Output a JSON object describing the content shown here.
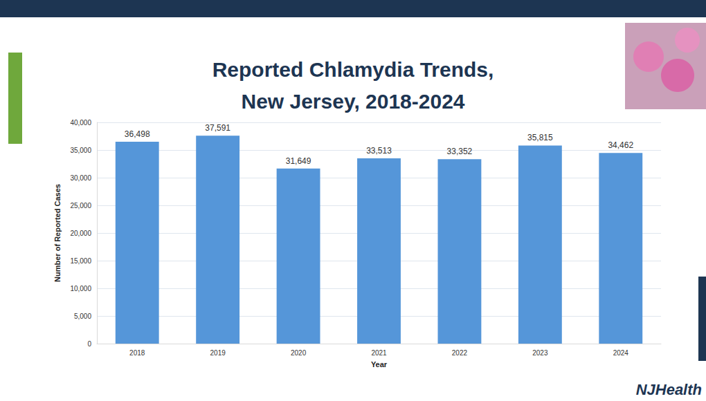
{
  "chart_data": {
    "type": "bar",
    "title": "Reported Chlamydia Trends, New Jersey, 2018-2024",
    "x_label": "Year",
    "y_label": "Number of Reported Cases",
    "categories": [
      "2018",
      "2019",
      "2020",
      "2021",
      "2022",
      "2023",
      "2024"
    ],
    "values": [
      36498,
      37591,
      31649,
      33513,
      33352,
      35815,
      34462
    ],
    "value_labels": [
      "36,498",
      "37,591",
      "31,649",
      "33,513",
      "33,352",
      "35,815",
      "34,462"
    ],
    "color": "#5596d9",
    "ylim": [
      0,
      40000
    ],
    "yticks": [
      0,
      {
        "value": 5000,
        "label": "5,000"
      },
      {
        "value": 10000,
        "label": "10,000"
      },
      {
        "value": 15000,
        "label": "15,000"
      },
      {
        "value": 20000,
        "label": "20,000"
      },
      {
        "value": 25000,
        "label": "25,000"
      },
      {
        "value": 30000,
        "label": "30,000"
      },
      {
        "value": 35000,
        "label": "35,000"
      },
      {
        "value": 40000,
        "label": "40,000"
      }
    ],
    "grid": true,
    "data_labels": true,
    "annotations": [
      "NJHealth"
    ]
  }
}
